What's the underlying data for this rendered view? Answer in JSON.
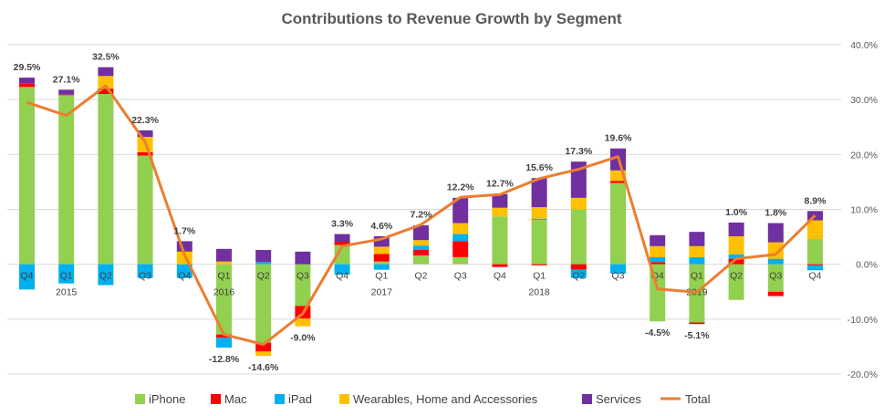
{
  "chart_data": {
    "type": "bar",
    "title": "Contributions  to Revenue Growth by Segment",
    "xlabel": "",
    "ylabel": "",
    "ylim": [
      -20,
      40
    ],
    "yticks": [
      "40.0%",
      "30.0%",
      "20.0%",
      "10.0%",
      "0.0%",
      "-10.0%",
      "-20.0%"
    ],
    "yaxis_position": "right",
    "grid": true,
    "legend_position": "bottom",
    "stacked": true,
    "categories": [
      "Q4",
      "Q1",
      "Q2",
      "Q3",
      "Q4",
      "Q1",
      "Q2",
      "Q3",
      "Q4",
      "Q1",
      "Q2",
      "Q3",
      "Q4",
      "Q1",
      "Q2",
      "Q3",
      "Q4",
      "Q1",
      "Q2",
      "Q3",
      "Q4"
    ],
    "year_labels": [
      {
        "index": 1,
        "label": "2015"
      },
      {
        "index": 5,
        "label": "2016"
      },
      {
        "index": 9,
        "label": "2017"
      },
      {
        "index": 13,
        "label": "2018"
      },
      {
        "index": 17,
        "label": "2019"
      }
    ],
    "series": [
      {
        "name": "iPhone",
        "color": "#92D050",
        "values": [
          32.3,
          30.8,
          31.0,
          19.8,
          0.0,
          -12.8,
          -14.3,
          -7.6,
          3.5,
          0.5,
          1.6,
          1.3,
          8.7,
          8.1,
          10.0,
          14.8,
          -10.4,
          -10.6,
          -6.5,
          -5.0,
          4.6
        ]
      },
      {
        "name": "Mac",
        "color": "#FF0000",
        "values": [
          0.6,
          0.1,
          1.0,
          0.6,
          0.0,
          -0.6,
          -1.6,
          -2.3,
          0.6,
          1.4,
          1.0,
          2.9,
          -0.5,
          -0.2,
          -1.0,
          0.4,
          0.4,
          -0.3,
          1.0,
          -0.8,
          -0.2
        ]
      },
      {
        "name": "iPad",
        "color": "#00B0F0",
        "values": [
          -4.6,
          -3.5,
          -3.8,
          -2.5,
          -2.5,
          -1.8,
          0.4,
          0.0,
          -1.9,
          -1.0,
          0.8,
          1.3,
          0.0,
          0.2,
          -1.5,
          -1.7,
          0.9,
          1.3,
          0.8,
          1.0,
          -0.9
        ]
      },
      {
        "name": "Wearables, Home and Accessories",
        "color": "#FFC000",
        "values": [
          0.0,
          0.0,
          2.3,
          2.8,
          2.3,
          0.5,
          -0.8,
          -1.4,
          0.0,
          1.3,
          1.0,
          2.0,
          1.6,
          2.1,
          2.1,
          1.9,
          2.0,
          2.0,
          3.3,
          3.0,
          3.4
        ]
      },
      {
        "name": "Services",
        "color": "#7030A0",
        "values": [
          1.1,
          0.9,
          1.6,
          1.2,
          1.9,
          2.3,
          2.2,
          2.3,
          1.4,
          1.9,
          2.7,
          4.6,
          2.5,
          5.3,
          6.6,
          4.0,
          2.0,
          2.6,
          2.5,
          3.5,
          1.7
        ]
      },
      {
        "name": "Total",
        "color": "#ED7D31",
        "type": "line",
        "values": [
          29.5,
          27.1,
          32.5,
          22.3,
          1.7,
          -12.8,
          -14.6,
          -9.0,
          3.3,
          4.6,
          7.2,
          12.2,
          12.7,
          15.6,
          17.3,
          19.6,
          -4.5,
          -5.1,
          1.0,
          1.8,
          8.9
        ],
        "labels": [
          "29.5%",
          "27.1%",
          "32.5%",
          "22.3%",
          "1.7%",
          "-12.8%",
          "-14.6%",
          "-9.0%",
          "3.3%",
          "4.6%",
          "7.2%",
          "12.2%",
          "12.7%",
          "15.6%",
          "17.3%",
          "19.6%",
          "-4.5%",
          "-5.1%",
          "1.0%",
          "1.8%",
          "8.9%"
        ]
      }
    ]
  }
}
